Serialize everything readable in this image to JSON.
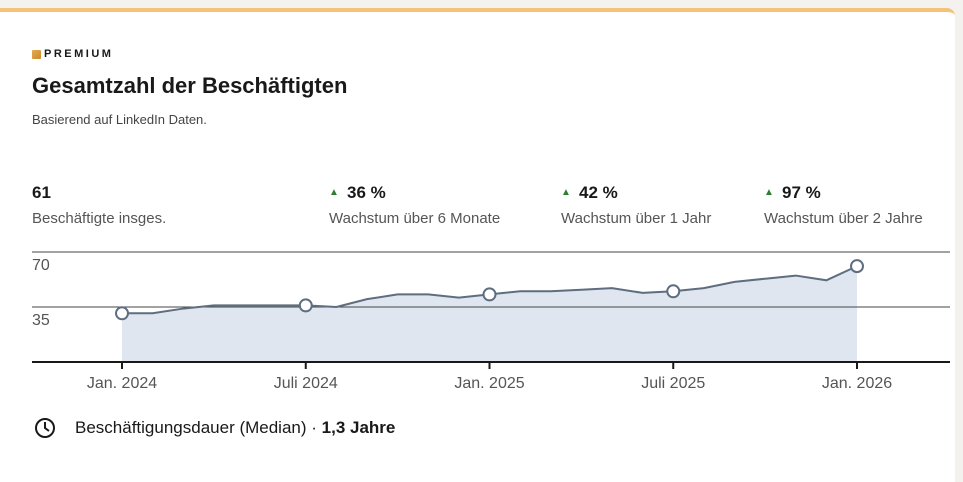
{
  "header": {
    "badge": "PREMIUM",
    "title": "Gesamtzahl der Beschäftigten",
    "subtitle": "Basierend auf LinkedIn Daten."
  },
  "stats": [
    {
      "value": "61",
      "label": "Beschäftigte insges."
    },
    {
      "value": "36 %",
      "label": "Wachstum über 6 Monate"
    },
    {
      "value": "42 %",
      "label": "Wachstum über 1 Jahr"
    },
    {
      "value": "97 %",
      "label": "Wachstum über 2 Jahre"
    }
  ],
  "chart_data": {
    "type": "area",
    "categories": [
      "Jan. 2024",
      null,
      null,
      null,
      null,
      null,
      "Juli 2024",
      null,
      null,
      null,
      null,
      null,
      "Jan. 2025",
      null,
      null,
      null,
      null,
      null,
      "Juli 2025",
      null,
      null,
      null,
      null,
      null,
      "Jan. 2026"
    ],
    "values": [
      31,
      31,
      34,
      36,
      36,
      36,
      36,
      35,
      40,
      43,
      43,
      41,
      43,
      45,
      45,
      46,
      47,
      44,
      45,
      47,
      51,
      53,
      55,
      52,
      61
    ],
    "color": "#5e6d80",
    "fill": "#dfe6ef",
    "ylim": [
      0,
      70
    ],
    "yticks": [
      35,
      70
    ],
    "grid": true
  },
  "footer": {
    "label": "Beschäftigungsdauer (Median) · ",
    "value": "1,3 Jahre"
  }
}
